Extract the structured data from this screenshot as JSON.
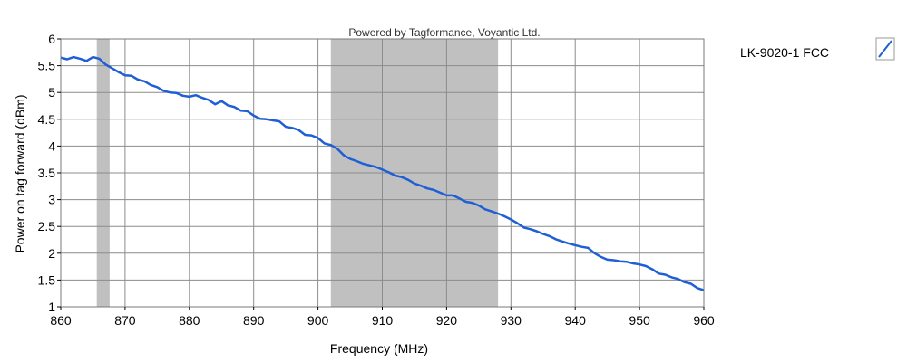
{
  "credit": "Powered by Tagformance, Voyantic Ltd.",
  "chart_data": {
    "type": "line",
    "xlabel": "Frequency (MHz)",
    "ylabel": "Power on tag forward (dBm)",
    "xlim": [
      860,
      960
    ],
    "ylim": [
      1,
      6
    ],
    "xticks": [
      860,
      870,
      880,
      890,
      900,
      910,
      920,
      930,
      940,
      950,
      960
    ],
    "yticks": [
      1,
      1.5,
      2,
      2.5,
      3,
      3.5,
      4,
      4.5,
      5,
      5.5,
      6
    ],
    "ytick_labels": [
      "1",
      "1.5",
      "2",
      "2.5",
      "3",
      "3.5",
      "4",
      "4.5",
      "5",
      "5.5",
      "6"
    ],
    "grid": true,
    "shaded_bands": [
      {
        "from": 865.6,
        "to": 867.6
      },
      {
        "from": 902,
        "to": 928
      }
    ],
    "band_color": "#c0c0c0",
    "legend_position": "right",
    "series": [
      {
        "name": "LK-9020-1 FCC",
        "color": "#1f5fd6",
        "x": [
          860,
          861,
          862,
          863,
          864,
          865,
          866,
          867,
          868,
          869,
          870,
          871,
          872,
          873,
          874,
          875,
          876,
          877,
          878,
          879,
          880,
          881,
          882,
          883,
          884,
          885,
          886,
          887,
          888,
          889,
          890,
          891,
          892,
          893,
          894,
          895,
          896,
          897,
          898,
          899,
          900,
          901,
          902,
          903,
          904,
          905,
          906,
          907,
          908,
          909,
          910,
          911,
          912,
          913,
          914,
          915,
          916,
          917,
          918,
          919,
          920,
          921,
          922,
          923,
          924,
          925,
          926,
          927,
          928,
          929,
          930,
          931,
          932,
          933,
          934,
          935,
          936,
          937,
          938,
          939,
          940,
          941,
          942,
          943,
          944,
          945,
          946,
          947,
          948,
          949,
          950,
          951,
          952,
          953,
          954,
          955,
          956,
          957,
          958,
          959,
          960
        ],
        "y": [
          5.65,
          5.62,
          5.66,
          5.63,
          5.59,
          5.66,
          5.63,
          5.52,
          5.45,
          5.38,
          5.32,
          5.31,
          5.24,
          5.21,
          5.14,
          5.1,
          5.03,
          5.0,
          4.99,
          4.94,
          4.92,
          4.95,
          4.9,
          4.86,
          4.78,
          4.84,
          4.76,
          4.73,
          4.66,
          4.65,
          4.57,
          4.51,
          4.5,
          4.48,
          4.46,
          4.36,
          4.34,
          4.3,
          4.21,
          4.2,
          4.15,
          4.05,
          4.02,
          3.95,
          3.83,
          3.76,
          3.72,
          3.67,
          3.64,
          3.61,
          3.56,
          3.51,
          3.45,
          3.42,
          3.37,
          3.3,
          3.26,
          3.21,
          3.18,
          3.13,
          3.08,
          3.08,
          3.02,
          2.96,
          2.94,
          2.89,
          2.82,
          2.78,
          2.74,
          2.69,
          2.63,
          2.56,
          2.48,
          2.45,
          2.41,
          2.36,
          2.32,
          2.26,
          2.22,
          2.18,
          2.15,
          2.12,
          2.1,
          2.0,
          1.93,
          1.88,
          1.87,
          1.85,
          1.84,
          1.81,
          1.79,
          1.76,
          1.7,
          1.62,
          1.6,
          1.55,
          1.52,
          1.46,
          1.43,
          1.35,
          1.31
        ]
      }
    ]
  }
}
